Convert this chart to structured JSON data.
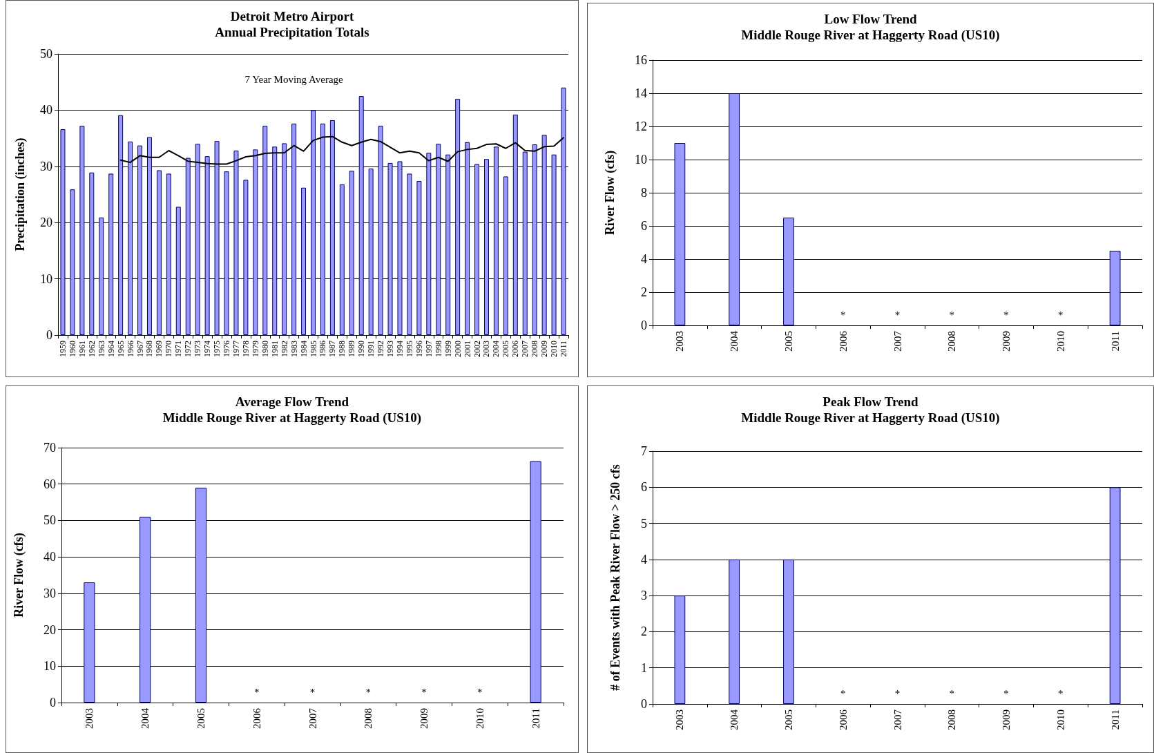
{
  "chart_data": [
    {
      "type": "bar",
      "title": "Detroit Metro Airport",
      "subtitle": "Annual Precipitation Totals",
      "ylabel": "Precipitation (inches)",
      "categories": [
        "1959",
        "1960",
        "1961",
        "1962",
        "1963",
        "1964",
        "1965",
        "1966",
        "1967",
        "1968",
        "1969",
        "1970",
        "1971",
        "1972",
        "1973",
        "1974",
        "1975",
        "1976",
        "1977",
        "1978",
        "1979",
        "1980",
        "1981",
        "1982",
        "1983",
        "1984",
        "1985",
        "1986",
        "1987",
        "1988",
        "1989",
        "1990",
        "1991",
        "1992",
        "1993",
        "1994",
        "1995",
        "1996",
        "1997",
        "1998",
        "1999",
        "2000",
        "2001",
        "2002",
        "2003",
        "2004",
        "2005",
        "2006",
        "2007",
        "2008",
        "2009",
        "2010",
        "2011"
      ],
      "series": [
        {
          "color": "#9999ff",
          "values": [
            36.6,
            25.9,
            37.2,
            28.9,
            20.9,
            28.7,
            39.1,
            34.4,
            33.7,
            35.2,
            29.3,
            28.7,
            22.8,
            31.5,
            34.0,
            31.8,
            34.5,
            29.1,
            32.8,
            27.6,
            33.0,
            37.2,
            33.5,
            34.1,
            37.6,
            26.2,
            40.0,
            37.6,
            38.2,
            26.8,
            29.2,
            42.5,
            29.6,
            37.2,
            30.6,
            30.9,
            28.7,
            27.4,
            32.4,
            34.0,
            32.1,
            42.0,
            34.3,
            30.4,
            31.3,
            33.5,
            28.2,
            39.2,
            32.6,
            33.9,
            35.6,
            32.1,
            44.0
          ]
        },
        {
          "type": "line",
          "name": "7 Year Moving Average",
          "color": "#000000",
          "values": [
            null,
            null,
            null,
            null,
            null,
            null,
            31.1,
            30.7,
            31.9,
            31.6,
            31.6,
            32.8,
            31.9,
            30.9,
            30.7,
            30.5,
            30.4,
            30.4,
            31.0,
            31.7,
            31.9,
            32.3,
            32.4,
            32.4,
            33.7,
            32.7,
            34.6,
            35.2,
            35.3,
            34.3,
            33.7,
            34.3,
            34.8,
            34.4,
            33.4,
            32.4,
            32.7,
            32.4,
            31.0,
            31.6,
            30.9,
            32.6,
            33.0,
            33.2,
            33.9,
            34.0,
            33.2,
            34.2,
            32.8,
            32.7,
            33.5,
            33.6,
            35.1
          ]
        }
      ],
      "ylim": [
        0,
        50
      ],
      "yticks": [
        0,
        10,
        20,
        30,
        40,
        50
      ],
      "grid": "y",
      "marker": "none",
      "line_style": "solid"
    },
    {
      "type": "bar",
      "title": "Low Flow Trend",
      "subtitle": "Middle Rouge River at Haggerty Road (US10)",
      "ylabel": "River Flow (cfs)",
      "categories": [
        "2003",
        "2004",
        "2005",
        "2006",
        "2007",
        "2008",
        "2009",
        "2010",
        "2011"
      ],
      "series": [
        {
          "color": "#9999ff",
          "values": [
            11,
            14,
            6.5,
            null,
            null,
            null,
            null,
            null,
            4.5
          ],
          "value_labels": [
            null,
            null,
            null,
            "*",
            "*",
            "*",
            "*",
            "*",
            null
          ]
        }
      ],
      "ylim": [
        0,
        16
      ],
      "yticks": [
        0,
        2,
        4,
        6,
        8,
        10,
        12,
        14,
        16
      ],
      "grid": "y"
    },
    {
      "type": "bar",
      "title": "Average Flow Trend",
      "subtitle": "Middle Rouge River at Haggerty Road (US10)",
      "ylabel": "River Flow (cfs)",
      "categories": [
        "2003",
        "2004",
        "2005",
        "2006",
        "2007",
        "2008",
        "2009",
        "2010",
        "2011"
      ],
      "series": [
        {
          "color": "#9999ff",
          "values": [
            33,
            51,
            59,
            null,
            null,
            null,
            null,
            null,
            66.3
          ],
          "value_labels": [
            null,
            null,
            null,
            "*",
            "*",
            "*",
            "*",
            "*",
            null
          ]
        }
      ],
      "ylim": [
        0,
        70
      ],
      "yticks": [
        0,
        10,
        20,
        30,
        40,
        50,
        60,
        70
      ],
      "grid": "y"
    },
    {
      "type": "bar",
      "title": "Peak Flow Trend",
      "subtitle": "Middle Rouge River at Haggerty Road (US10)",
      "ylabel": "# of Events with Peak River Flow > 250 cfs",
      "categories": [
        "2003",
        "2004",
        "2005",
        "2006",
        "2007",
        "2008",
        "2009",
        "2010",
        "2011"
      ],
      "series": [
        {
          "color": "#9999ff",
          "values": [
            3,
            4,
            4,
            null,
            null,
            null,
            null,
            null,
            6
          ],
          "value_labels": [
            null,
            null,
            null,
            "*",
            "*",
            "*",
            "*",
            "*",
            null
          ]
        }
      ],
      "ylim": [
        0,
        7
      ],
      "yticks": [
        0,
        1,
        2,
        3,
        4,
        5,
        6,
        7
      ],
      "grid": "y"
    }
  ]
}
